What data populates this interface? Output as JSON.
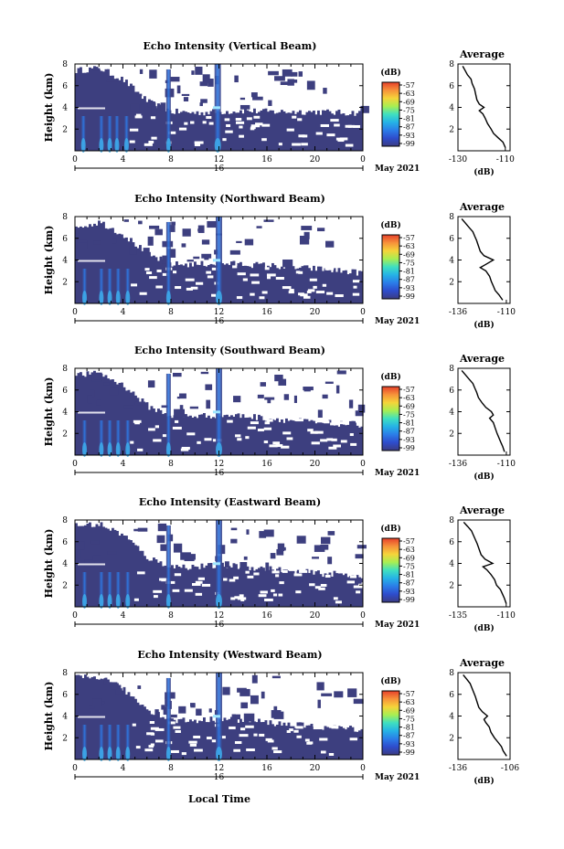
{
  "figure": {
    "x_axis_label": "Local Time",
    "date_label": "May 2021",
    "day_label": "16",
    "colorbar_unit": "(dB)",
    "colorbar_ticks": [
      "-57",
      "-63",
      "-69",
      "-75",
      "-81",
      "-87",
      "-93",
      "-99"
    ],
    "colorbar_colors": [
      "#3b3c82",
      "#2e4ccc",
      "#2b7de8",
      "#25b3e6",
      "#3fe0c0",
      "#a8ee52",
      "#f5d43a",
      "#f7923a",
      "#e6402b"
    ],
    "background_fill": "#3d3f7f",
    "cloud_core_color": "#2d79e6"
  },
  "chart_data": [
    {
      "type": "heatmap",
      "title": "Echo Intensity (Vertical Beam)",
      "xlabel": "",
      "ylabel": "Height (km)",
      "xlim": [
        0,
        24
      ],
      "ylim": [
        0,
        8
      ],
      "x_ticks": [
        "0",
        "4",
        "8",
        "12",
        "16",
        "20",
        "0"
      ],
      "y_ticks": [
        "2",
        "4",
        "6",
        "8"
      ],
      "colorbar_range": [
        -99,
        -57
      ],
      "echo_top_km": [
        7.4,
        7.6,
        6.5,
        4.5,
        3.6,
        3.5,
        3.6,
        3.7,
        3.6,
        3.6,
        3.6,
        3.5,
        3.5
      ],
      "convective_cells_hour": [
        0.7,
        2.2,
        2.9,
        3.5,
        4.3,
        7.8,
        11.9
      ],
      "average_profile": {
        "title": "Average",
        "xlabel": "(dB)",
        "xlim": [
          -130,
          -108
        ],
        "ylim": [
          0,
          8
        ],
        "x_ticks": [
          "-130",
          "-110"
        ],
        "y_ticks": [
          "2",
          "4",
          "6",
          "8"
        ],
        "height_km": [
          0.3,
          0.8,
          1.2,
          1.6,
          2.0,
          2.5,
          3.0,
          3.4,
          3.7,
          4.0,
          4.3,
          4.7,
          5.2,
          5.7,
          6.2,
          6.6,
          7.0,
          7.4,
          7.8
        ],
        "value_db": [
          -110,
          -111,
          -113,
          -115,
          -116,
          -117.5,
          -118.5,
          -119.5,
          -121,
          -119,
          -121,
          -122,
          -122.5,
          -123,
          -124,
          -124.5,
          -126,
          -127,
          -128
        ]
      }
    },
    {
      "type": "heatmap",
      "title": "Echo Intensity (Northward Beam)",
      "xlabel": "",
      "ylabel": "Height (km)",
      "xlim": [
        0,
        24
      ],
      "ylim": [
        0,
        8
      ],
      "x_ticks": [
        "0",
        "4",
        "8",
        "12",
        "16",
        "20",
        "0"
      ],
      "y_ticks": [
        "2",
        "4",
        "6",
        "8"
      ],
      "colorbar_range": [
        -99,
        -57
      ],
      "echo_top_km": [
        7.0,
        7.5,
        6.3,
        4.5,
        3.6,
        3.6,
        3.7,
        3.6,
        3.5,
        3.3,
        3.2,
        3.0,
        2.8
      ],
      "convective_cells_hour": [
        0.8,
        2.2,
        2.9,
        3.6,
        4.4,
        7.8,
        12.0
      ],
      "average_profile": {
        "title": "Average",
        "xlabel": "(dB)",
        "xlim": [
          -136,
          -108
        ],
        "ylim": [
          0,
          8
        ],
        "x_ticks": [
          "-136",
          "-110"
        ],
        "y_ticks": [
          "2",
          "4",
          "6",
          "8"
        ],
        "height_km": [
          0.3,
          0.8,
          1.2,
          1.6,
          2.0,
          2.5,
          3.0,
          3.3,
          3.6,
          4.0,
          4.4,
          4.8,
          5.3,
          5.8,
          6.2,
          6.6,
          7.0,
          7.4,
          7.8
        ],
        "value_db": [
          -112,
          -114,
          -116,
          -117,
          -118,
          -119,
          -121,
          -124,
          -121,
          -117,
          -122,
          -124,
          -125,
          -126,
          -127,
          -128,
          -130,
          -132,
          -134
        ]
      }
    },
    {
      "type": "heatmap",
      "title": "Echo Intensity (Southward Beam)",
      "xlabel": "",
      "ylabel": "Height (km)",
      "xlim": [
        0,
        24
      ],
      "ylim": [
        0,
        8
      ],
      "x_ticks": [
        "0",
        "4",
        "8",
        "12",
        "16",
        "20",
        "0"
      ],
      "y_ticks": [
        "2",
        "4",
        "6",
        "8"
      ],
      "colorbar_range": [
        -99,
        -57
      ],
      "echo_top_km": [
        7.4,
        7.5,
        6.4,
        4.5,
        3.6,
        3.6,
        3.7,
        3.6,
        3.4,
        3.2,
        3.0,
        2.9,
        2.8
      ],
      "convective_cells_hour": [
        0.8,
        2.2,
        2.9,
        3.6,
        4.4,
        7.8,
        12.0
      ],
      "average_profile": {
        "title": "Average",
        "xlabel": "(dB)",
        "xlim": [
          -136,
          -108
        ],
        "ylim": [
          0,
          8
        ],
        "x_ticks": [
          "-136",
          "-110"
        ],
        "y_ticks": [
          "2",
          "4",
          "6",
          "8"
        ],
        "height_km": [
          0.3,
          0.8,
          1.2,
          1.6,
          2.0,
          2.5,
          3.0,
          3.4,
          3.7,
          4.0,
          4.4,
          4.8,
          5.3,
          5.8,
          6.2,
          6.6,
          7.0,
          7.4,
          7.8
        ],
        "value_db": [
          -111,
          -112,
          -113,
          -114,
          -115,
          -116,
          -117,
          -119,
          -117,
          -118,
          -121,
          -123,
          -125,
          -126,
          -127,
          -128,
          -130,
          -132,
          -134
        ]
      }
    },
    {
      "type": "heatmap",
      "title": "Echo Intensity (Eastward Beam)",
      "xlabel": "",
      "ylabel": "Height (km)",
      "xlim": [
        0,
        24
      ],
      "ylim": [
        0,
        8
      ],
      "x_ticks": [
        "0",
        "4",
        "8",
        "12",
        "16",
        "20",
        "0"
      ],
      "y_ticks": [
        "2",
        "4",
        "6",
        "8"
      ],
      "colorbar_range": [
        -99,
        -57
      ],
      "echo_top_km": [
        7.5,
        7.6,
        6.6,
        4.5,
        3.7,
        3.7,
        3.8,
        3.7,
        3.5,
        3.3,
        3.1,
        3.0,
        2.9
      ],
      "convective_cells_hour": [
        0.8,
        2.2,
        2.9,
        3.6,
        4.4,
        7.8,
        12.0
      ],
      "average_profile": {
        "title": "Average",
        "xlabel": "(dB)",
        "xlim": [
          -135,
          -108
        ],
        "ylim": [
          0,
          8
        ],
        "x_ticks": [
          "-135",
          "-110"
        ],
        "y_ticks": [
          "2",
          "4",
          "6",
          "8"
        ],
        "height_km": [
          0.3,
          0.8,
          1.2,
          1.6,
          2.0,
          2.5,
          3.0,
          3.4,
          3.7,
          4.0,
          4.4,
          4.8,
          5.3,
          5.8,
          6.2,
          6.6,
          7.0,
          7.4,
          7.8
        ],
        "value_db": [
          -110,
          -111,
          -112,
          -113,
          -115,
          -116,
          -118,
          -120,
          -122,
          -117,
          -121,
          -123,
          -124,
          -125,
          -126,
          -127,
          -128,
          -130,
          -132
        ]
      }
    },
    {
      "type": "heatmap",
      "title": "Echo Intensity (Westward Beam)",
      "xlabel": "Local Time",
      "ylabel": "Height (km)",
      "xlim": [
        0,
        24
      ],
      "ylim": [
        0,
        8
      ],
      "x_ticks": [
        "0",
        "4",
        "8",
        "12",
        "16",
        "20",
        "0"
      ],
      "y_ticks": [
        "2",
        "4",
        "6",
        "8"
      ],
      "colorbar_range": [
        -99,
        -57
      ],
      "echo_top_km": [
        7.5,
        7.6,
        6.4,
        4.6,
        3.6,
        3.6,
        3.7,
        3.6,
        3.4,
        3.2,
        3.0,
        2.9,
        2.8
      ],
      "convective_cells_hour": [
        0.8,
        2.2,
        2.9,
        3.6,
        4.4,
        7.8,
        12.0
      ],
      "average_profile": {
        "title": "Average",
        "xlabel": "(dB)",
        "xlim": [
          -136,
          -106
        ],
        "ylim": [
          0,
          8
        ],
        "x_ticks": [
          "-136",
          "-106"
        ],
        "y_ticks": [
          "2",
          "4",
          "6",
          "8"
        ],
        "height_km": [
          0.3,
          0.8,
          1.2,
          1.6,
          2.0,
          2.5,
          3.0,
          3.4,
          3.7,
          4.0,
          4.4,
          4.8,
          5.3,
          5.8,
          6.2,
          6.6,
          7.0,
          7.4,
          7.8
        ],
        "value_db": [
          -108,
          -110,
          -111,
          -113,
          -115,
          -117,
          -118,
          -120,
          -121,
          -119,
          -122,
          -124,
          -125,
          -126,
          -127,
          -128,
          -129,
          -131,
          -133
        ]
      }
    }
  ]
}
